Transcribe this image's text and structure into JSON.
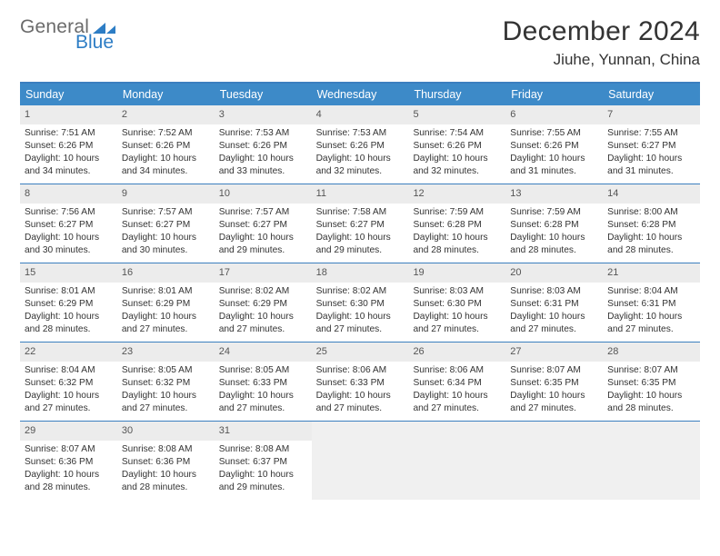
{
  "brand": {
    "text1": "General",
    "text2": "Blue",
    "color1": "#6b6b6b",
    "color2": "#2d7dc5",
    "mark_color": "#2d7dc5"
  },
  "title": "December 2024",
  "location": "Jiuhe, Yunnan, China",
  "colors": {
    "header_bg": "#3d8ac8",
    "header_text": "#ffffff",
    "week_divider": "#3b7fbf",
    "daynum_bg": "#ececec",
    "blank_bg": "#f0f0f0",
    "body_text": "#333333"
  },
  "weekdays": [
    "Sunday",
    "Monday",
    "Tuesday",
    "Wednesday",
    "Thursday",
    "Friday",
    "Saturday"
  ],
  "days": [
    {
      "n": 1,
      "sunrise": "7:51 AM",
      "sunset": "6:26 PM",
      "daylight": "10 hours and 34 minutes."
    },
    {
      "n": 2,
      "sunrise": "7:52 AM",
      "sunset": "6:26 PM",
      "daylight": "10 hours and 34 minutes."
    },
    {
      "n": 3,
      "sunrise": "7:53 AM",
      "sunset": "6:26 PM",
      "daylight": "10 hours and 33 minutes."
    },
    {
      "n": 4,
      "sunrise": "7:53 AM",
      "sunset": "6:26 PM",
      "daylight": "10 hours and 32 minutes."
    },
    {
      "n": 5,
      "sunrise": "7:54 AM",
      "sunset": "6:26 PM",
      "daylight": "10 hours and 32 minutes."
    },
    {
      "n": 6,
      "sunrise": "7:55 AM",
      "sunset": "6:26 PM",
      "daylight": "10 hours and 31 minutes."
    },
    {
      "n": 7,
      "sunrise": "7:55 AM",
      "sunset": "6:27 PM",
      "daylight": "10 hours and 31 minutes."
    },
    {
      "n": 8,
      "sunrise": "7:56 AM",
      "sunset": "6:27 PM",
      "daylight": "10 hours and 30 minutes."
    },
    {
      "n": 9,
      "sunrise": "7:57 AM",
      "sunset": "6:27 PM",
      "daylight": "10 hours and 30 minutes."
    },
    {
      "n": 10,
      "sunrise": "7:57 AM",
      "sunset": "6:27 PM",
      "daylight": "10 hours and 29 minutes."
    },
    {
      "n": 11,
      "sunrise": "7:58 AM",
      "sunset": "6:27 PM",
      "daylight": "10 hours and 29 minutes."
    },
    {
      "n": 12,
      "sunrise": "7:59 AM",
      "sunset": "6:28 PM",
      "daylight": "10 hours and 28 minutes."
    },
    {
      "n": 13,
      "sunrise": "7:59 AM",
      "sunset": "6:28 PM",
      "daylight": "10 hours and 28 minutes."
    },
    {
      "n": 14,
      "sunrise": "8:00 AM",
      "sunset": "6:28 PM",
      "daylight": "10 hours and 28 minutes."
    },
    {
      "n": 15,
      "sunrise": "8:01 AM",
      "sunset": "6:29 PM",
      "daylight": "10 hours and 28 minutes."
    },
    {
      "n": 16,
      "sunrise": "8:01 AM",
      "sunset": "6:29 PM",
      "daylight": "10 hours and 27 minutes."
    },
    {
      "n": 17,
      "sunrise": "8:02 AM",
      "sunset": "6:29 PM",
      "daylight": "10 hours and 27 minutes."
    },
    {
      "n": 18,
      "sunrise": "8:02 AM",
      "sunset": "6:30 PM",
      "daylight": "10 hours and 27 minutes."
    },
    {
      "n": 19,
      "sunrise": "8:03 AM",
      "sunset": "6:30 PM",
      "daylight": "10 hours and 27 minutes."
    },
    {
      "n": 20,
      "sunrise": "8:03 AM",
      "sunset": "6:31 PM",
      "daylight": "10 hours and 27 minutes."
    },
    {
      "n": 21,
      "sunrise": "8:04 AM",
      "sunset": "6:31 PM",
      "daylight": "10 hours and 27 minutes."
    },
    {
      "n": 22,
      "sunrise": "8:04 AM",
      "sunset": "6:32 PM",
      "daylight": "10 hours and 27 minutes."
    },
    {
      "n": 23,
      "sunrise": "8:05 AM",
      "sunset": "6:32 PM",
      "daylight": "10 hours and 27 minutes."
    },
    {
      "n": 24,
      "sunrise": "8:05 AM",
      "sunset": "6:33 PM",
      "daylight": "10 hours and 27 minutes."
    },
    {
      "n": 25,
      "sunrise": "8:06 AM",
      "sunset": "6:33 PM",
      "daylight": "10 hours and 27 minutes."
    },
    {
      "n": 26,
      "sunrise": "8:06 AM",
      "sunset": "6:34 PM",
      "daylight": "10 hours and 27 minutes."
    },
    {
      "n": 27,
      "sunrise": "8:07 AM",
      "sunset": "6:35 PM",
      "daylight": "10 hours and 27 minutes."
    },
    {
      "n": 28,
      "sunrise": "8:07 AM",
      "sunset": "6:35 PM",
      "daylight": "10 hours and 28 minutes."
    },
    {
      "n": 29,
      "sunrise": "8:07 AM",
      "sunset": "6:36 PM",
      "daylight": "10 hours and 28 minutes."
    },
    {
      "n": 30,
      "sunrise": "8:08 AM",
      "sunset": "6:36 PM",
      "daylight": "10 hours and 28 minutes."
    },
    {
      "n": 31,
      "sunrise": "8:08 AM",
      "sunset": "6:37 PM",
      "daylight": "10 hours and 29 minutes."
    }
  ],
  "start_weekday_index": 0,
  "labels": {
    "sunrise": "Sunrise:",
    "sunset": "Sunset:",
    "daylight": "Daylight:"
  }
}
